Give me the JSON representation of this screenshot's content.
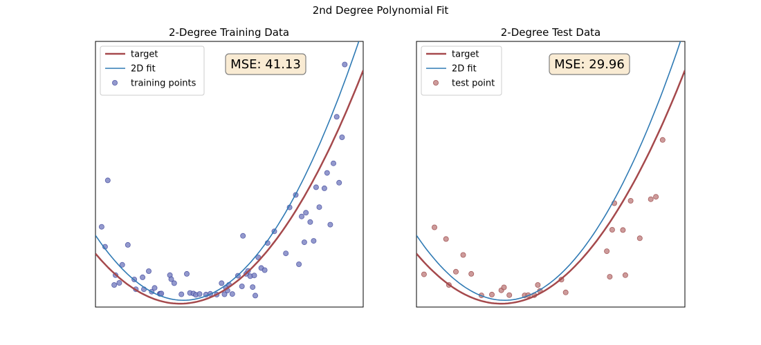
{
  "figure": {
    "suptitle": "2nd Degree Polynomial Fit"
  },
  "chart_data": [
    {
      "type": "scatter",
      "title": "2-Degree Training Data",
      "xlabel": "",
      "ylabel": "",
      "xlim": [
        0,
        100
      ],
      "ylim": [
        0,
        100
      ],
      "grid": false,
      "legend_position": "top-left",
      "annotation": "MSE: 41.13",
      "annotation_position": "top-center",
      "series": [
        {
          "name": "target",
          "kind": "line",
          "color": "#a5494c",
          "coefficients": [
            20.1,
            -1.19,
            0.0188
          ]
        },
        {
          "name": "2D fit",
          "kind": "line",
          "color": "#2f7ab4",
          "coefficients": [
            27.0,
            -1.49,
            0.0227
          ]
        },
        {
          "name": "training points",
          "kind": "scatter",
          "color": "#8087c4",
          "edge_color": "#2c3592",
          "points": [
            [
              2.3,
              30.2
            ],
            [
              3.6,
              22.7
            ],
            [
              4.6,
              47.7
            ],
            [
              7.0,
              8.3
            ],
            [
              7.5,
              12.0
            ],
            [
              8.9,
              9.1
            ],
            [
              10.0,
              15.9
            ],
            [
              12.1,
              23.4
            ],
            [
              14.5,
              10.4
            ],
            [
              15.1,
              6.7
            ],
            [
              17.6,
              11.2
            ],
            [
              18.1,
              6.7
            ],
            [
              19.9,
              13.5
            ],
            [
              21.0,
              5.8
            ],
            [
              22.1,
              7.2
            ],
            [
              24.0,
              5.0
            ],
            [
              24.2,
              5.0
            ],
            [
              24.6,
              5.1
            ],
            [
              27.8,
              12.0
            ],
            [
              28.3,
              10.5
            ],
            [
              29.4,
              9.0
            ],
            [
              32.1,
              4.8
            ],
            [
              34.1,
              12.5
            ],
            [
              35.3,
              5.3
            ],
            [
              36.6,
              5.1
            ],
            [
              37.5,
              4.6
            ],
            [
              38.9,
              4.9
            ],
            [
              41.3,
              4.7
            ],
            [
              42.9,
              5.0
            ],
            [
              45.3,
              4.7
            ],
            [
              47.1,
              9.0
            ],
            [
              48.2,
              4.8
            ],
            [
              48.7,
              7.3
            ],
            [
              49.3,
              6.2
            ],
            [
              49.9,
              8.4
            ],
            [
              51.1,
              4.9
            ],
            [
              53.2,
              11.8
            ],
            [
              54.7,
              7.8
            ],
            [
              55.1,
              26.8
            ],
            [
              56.3,
              12.5
            ],
            [
              57.0,
              13.6
            ],
            [
              57.8,
              11.6
            ],
            [
              58.7,
              7.5
            ],
            [
              59.3,
              11.9
            ],
            [
              59.7,
              4.3
            ],
            [
              60.8,
              18.7
            ],
            [
              61.9,
              14.7
            ],
            [
              63.2,
              13.9
            ],
            [
              64.3,
              24.1
            ],
            [
              66.8,
              28.5
            ],
            [
              71.1,
              20.2
            ],
            [
              72.5,
              37.5
            ],
            [
              74.8,
              42.2
            ],
            [
              76.0,
              16.1
            ],
            [
              77.0,
              34.1
            ],
            [
              78.0,
              24.4
            ],
            [
              78.6,
              35.5
            ],
            [
              80.2,
              32.0
            ],
            [
              81.5,
              24.9
            ],
            [
              82.4,
              45.1
            ],
            [
              83.6,
              37.6
            ],
            [
              85.5,
              44.7
            ],
            [
              86.5,
              50.5
            ],
            [
              87.7,
              31.0
            ],
            [
              88.9,
              54.1
            ],
            [
              90.1,
              71.6
            ],
            [
              91.0,
              46.8
            ],
            [
              92.1,
              63.9
            ],
            [
              93.1,
              91.3
            ]
          ]
        }
      ]
    },
    {
      "type": "scatter",
      "title": "2-Degree Test Data",
      "xlabel": "",
      "ylabel": "",
      "xlim": [
        0,
        100
      ],
      "ylim": [
        0,
        100
      ],
      "grid": false,
      "legend_position": "top-left",
      "annotation": "MSE: 29.96",
      "annotation_position": "top-center",
      "series": [
        {
          "name": "target",
          "kind": "line",
          "color": "#a5494c",
          "coefficients": [
            20.1,
            -1.19,
            0.0188
          ]
        },
        {
          "name": "2D fit",
          "kind": "line",
          "color": "#2f7ab4",
          "coefficients": [
            27.0,
            -1.49,
            0.0227
          ]
        },
        {
          "name": "test point",
          "kind": "scatter",
          "color": "#c48a8a",
          "edge_color": "#8b2f2f",
          "points": [
            [
              2.8,
              12.3
            ],
            [
              6.7,
              30.0
            ],
            [
              11.0,
              25.6
            ],
            [
              12.1,
              8.3
            ],
            [
              14.7,
              13.3
            ],
            [
              17.4,
              19.6
            ],
            [
              20.4,
              12.5
            ],
            [
              24.2,
              4.4
            ],
            [
              28.1,
              4.7
            ],
            [
              31.6,
              6.3
            ],
            [
              32.6,
              7.4
            ],
            [
              34.6,
              4.5
            ],
            [
              40.3,
              4.4
            ],
            [
              41.6,
              4.5
            ],
            [
              43.9,
              4.5
            ],
            [
              45.2,
              8.3
            ],
            [
              46.0,
              6.1
            ],
            [
              54.0,
              10.3
            ],
            [
              55.6,
              5.5
            ],
            [
              70.9,
              21.0
            ],
            [
              72.0,
              11.4
            ],
            [
              72.9,
              29.1
            ],
            [
              73.7,
              39.1
            ],
            [
              76.9,
              29.0
            ],
            [
              77.8,
              12.0
            ],
            [
              79.8,
              40.0
            ],
            [
              83.2,
              25.9
            ],
            [
              87.3,
              40.6
            ],
            [
              89.2,
              41.5
            ],
            [
              91.7,
              62.9
            ]
          ]
        }
      ]
    }
  ]
}
